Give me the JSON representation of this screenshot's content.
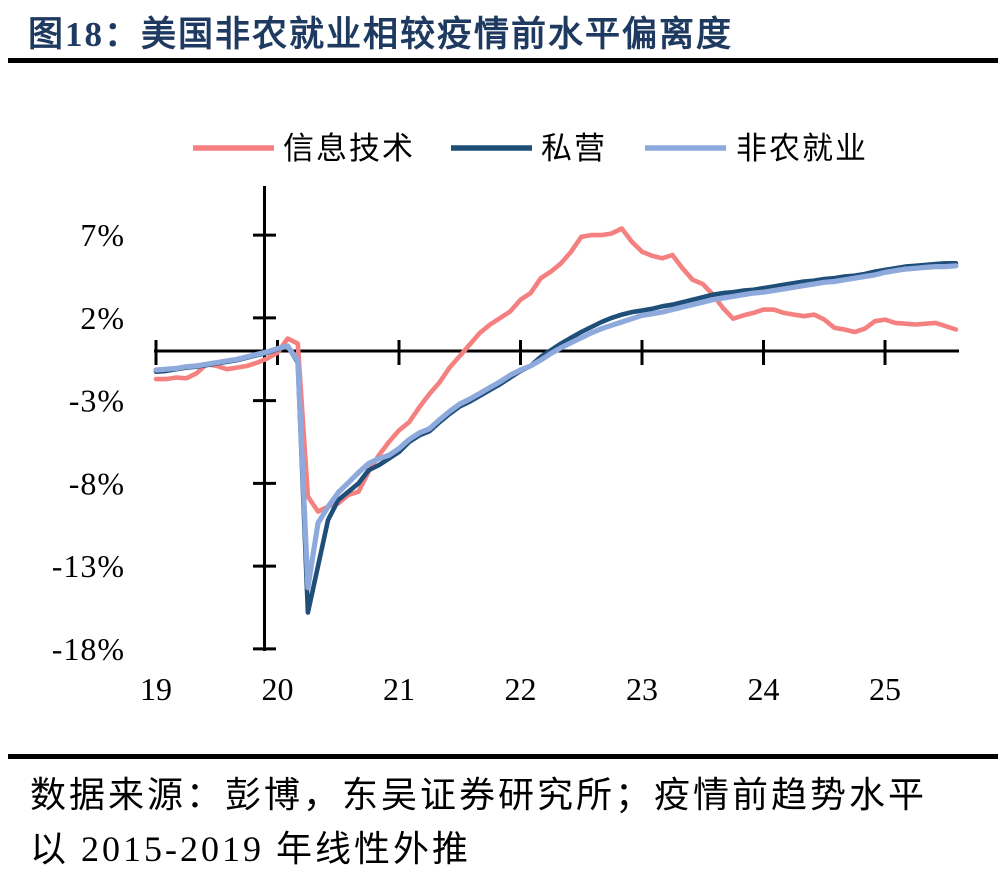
{
  "header": {
    "title": "图18：美国非农就业相较疫情前水平偏离度"
  },
  "footer": {
    "source_line1": "数据来源：彭博，东吴证券研究所；疫情前趋势水平",
    "source_line2": "以 2015-2019 年线性外推"
  },
  "colors": {
    "title_navy": "#1F3A60",
    "axis_black": "#000000",
    "it_line": "#F58080",
    "private_line": "#1F4E79",
    "nonfarm_line": "#8EAADC"
  },
  "chart_data": {
    "type": "line",
    "title": "",
    "xlabel": "",
    "ylabel": "",
    "unit": "%",
    "grid": false,
    "legend_position": "top",
    "x_start": "2019-01",
    "x_end": "2025-08",
    "x_frequency": "monthly",
    "x_tick_years": [
      2019,
      2020,
      2021,
      2022,
      2023,
      2024,
      2025
    ],
    "x_tick_labels": [
      "19",
      "20",
      "21",
      "22",
      "23",
      "24",
      "25"
    ],
    "y_tick_values": [
      7,
      2,
      -3,
      -8,
      -13,
      -18
    ],
    "y_tick_labels": [
      "7%",
      "2%",
      "-3%",
      "-8%",
      "-13%",
      "-18%"
    ],
    "ylim": [
      -18.5,
      10
    ],
    "series": [
      {
        "key": "it",
        "name": "信息技术",
        "color": "#F58080",
        "values": [
          -1.7,
          -1.7,
          -1.6,
          -1.65,
          -1.35,
          -0.8,
          -0.9,
          -1.1,
          -1.0,
          -0.9,
          -0.7,
          -0.45,
          -0.1,
          0.75,
          0.45,
          -8.8,
          -9.7,
          -9.4,
          -9.2,
          -8.7,
          -8.5,
          -7.3,
          -6.3,
          -5.5,
          -4.8,
          -4.3,
          -3.4,
          -2.6,
          -1.9,
          -1.0,
          -0.3,
          0.4,
          1.1,
          1.6,
          2.0,
          2.4,
          3.1,
          3.5,
          4.4,
          4.8,
          5.3,
          6.0,
          6.9,
          7.0,
          7.0,
          7.1,
          7.4,
          6.6,
          6.0,
          5.75,
          5.6,
          5.8,
          5.0,
          4.3,
          4.05,
          3.4,
          2.6,
          1.95,
          2.15,
          2.3,
          2.5,
          2.5,
          2.3,
          2.2,
          2.1,
          2.2,
          1.9,
          1.4,
          1.3,
          1.15,
          1.35,
          1.8,
          1.9,
          1.7,
          1.65,
          1.6,
          1.65,
          1.7,
          1.5,
          1.3
        ]
      },
      {
        "key": "private",
        "name": "私营",
        "color": "#1F4E79",
        "values": [
          -1.25,
          -1.2,
          -1.1,
          -1.0,
          -0.95,
          -0.85,
          -0.75,
          -0.65,
          -0.55,
          -0.4,
          -0.25,
          -0.1,
          0.1,
          0.3,
          -0.7,
          -15.8,
          -13.0,
          -10.2,
          -9.0,
          -8.5,
          -8.0,
          -7.2,
          -6.9,
          -6.5,
          -6.1,
          -5.5,
          -5.1,
          -4.85,
          -4.3,
          -3.8,
          -3.35,
          -3.05,
          -2.7,
          -2.35,
          -2.0,
          -1.6,
          -1.2,
          -0.9,
          -0.35,
          0.05,
          0.45,
          0.8,
          1.15,
          1.45,
          1.75,
          2.0,
          2.2,
          2.35,
          2.45,
          2.55,
          2.7,
          2.8,
          2.95,
          3.1,
          3.25,
          3.4,
          3.5,
          3.55,
          3.65,
          3.7,
          3.8,
          3.9,
          4.0,
          4.1,
          4.2,
          4.25,
          4.35,
          4.4,
          4.5,
          4.55,
          4.65,
          4.8,
          4.9,
          5.0,
          5.1,
          5.15,
          5.2,
          5.25,
          5.3,
          5.3
        ]
      },
      {
        "key": "nonfarm",
        "name": "非农就业",
        "color": "#8EAADC",
        "values": [
          -1.15,
          -1.1,
          -1.05,
          -0.95,
          -0.9,
          -0.8,
          -0.7,
          -0.6,
          -0.5,
          -0.35,
          -0.2,
          -0.05,
          0.15,
          0.3,
          -0.6,
          -14.3,
          -10.4,
          -9.4,
          -8.55,
          -7.95,
          -7.35,
          -6.8,
          -6.5,
          -6.3,
          -5.9,
          -5.35,
          -4.95,
          -4.7,
          -4.15,
          -3.65,
          -3.2,
          -2.9,
          -2.55,
          -2.2,
          -1.85,
          -1.45,
          -1.15,
          -0.9,
          -0.55,
          -0.15,
          0.2,
          0.5,
          0.8,
          1.1,
          1.35,
          1.55,
          1.75,
          1.95,
          2.15,
          2.25,
          2.35,
          2.5,
          2.65,
          2.8,
          2.95,
          3.1,
          3.2,
          3.3,
          3.4,
          3.5,
          3.55,
          3.65,
          3.75,
          3.85,
          3.95,
          4.05,
          4.15,
          4.2,
          4.3,
          4.4,
          4.5,
          4.6,
          4.75,
          4.85,
          4.95,
          5.0,
          5.05,
          5.1,
          5.1,
          5.15
        ]
      }
    ]
  }
}
